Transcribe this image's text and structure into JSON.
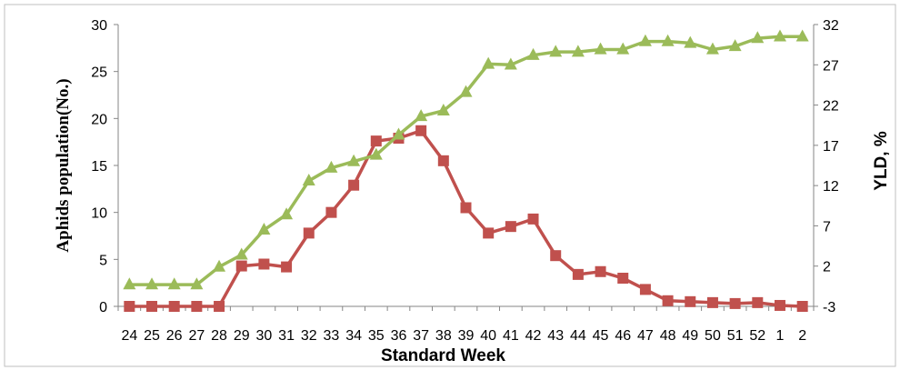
{
  "chart_data": {
    "type": "line",
    "xlabel": "Standard Week",
    "ylabel_left": "Aphids population(No.)",
    "ylabel_right": "YLD, %",
    "categories": [
      "24",
      "25",
      "26",
      "27",
      "28",
      "29",
      "30",
      "31",
      "32",
      "33",
      "34",
      "35",
      "36",
      "37",
      "38",
      "39",
      "40",
      "41",
      "42",
      "43",
      "44",
      "45",
      "46",
      "47",
      "48",
      "49",
      "50",
      "51",
      "52",
      "1",
      "2"
    ],
    "y_left": {
      "min": 0,
      "max": 30,
      "ticks": [
        0,
        5,
        10,
        15,
        20,
        25,
        30
      ]
    },
    "y_right": {
      "min": -3,
      "max": 32,
      "ticks": [
        -3,
        2,
        7,
        12,
        17,
        22,
        27,
        32
      ]
    },
    "grid": false,
    "legend": "none",
    "series": [
      {
        "axis": "left",
        "marker": "square",
        "color": "#c0504d",
        "values": [
          0,
          0,
          0,
          0,
          0,
          4.3,
          4.5,
          4.2,
          7.8,
          10,
          12.9,
          17.6,
          17.9,
          18.7,
          15.5,
          10.5,
          7.8,
          8.5,
          9.3,
          5.4,
          3.4,
          3.7,
          3.0,
          1.8,
          0.6,
          0.5,
          0.4,
          0.3,
          0.4,
          0.1,
          0
        ]
      },
      {
        "axis": "right",
        "marker": "triangle",
        "color": "#9bbb59",
        "values": [
          -0.3,
          -0.3,
          -0.3,
          -0.3,
          1.9,
          3.4,
          6.5,
          8.4,
          12.6,
          14.2,
          15.0,
          15.8,
          18.3,
          20.6,
          21.3,
          23.6,
          27.1,
          27.0,
          28.2,
          28.6,
          28.6,
          28.9,
          28.9,
          29.9,
          29.9,
          29.7,
          28.9,
          29.3,
          30.3,
          30.5,
          30.5
        ]
      }
    ]
  }
}
